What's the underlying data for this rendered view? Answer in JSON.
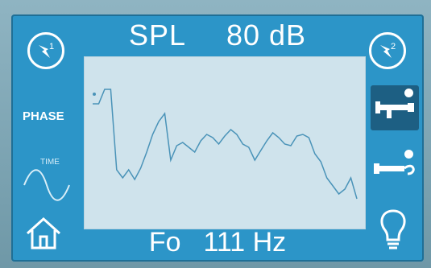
{
  "header": {
    "label": "SPL",
    "value": "80 dB"
  },
  "footer": {
    "label": "Fo",
    "value": "111 Hz"
  },
  "left_panel": {
    "phase_label": "PHASE",
    "time_label": "TIME"
  },
  "icons": {
    "channel1": "channel-1-icon",
    "channel2": "channel-2-icon",
    "home": "home-icon",
    "bulb": "light-bulb-icon",
    "probe1": "probe-1-icon",
    "probe2": "probe-2-icon"
  },
  "colors": {
    "screen": "#2c95c8",
    "plot_bg": "#cfe3ec",
    "waveform": "#4a93b8"
  },
  "waveform": [
    58,
    58,
    40,
    40,
    140,
    150,
    140,
    152,
    138,
    118,
    96,
    80,
    70,
    128,
    110,
    106,
    112,
    118,
    104,
    96,
    100,
    108,
    98,
    90,
    96,
    108,
    112,
    128,
    116,
    104,
    94,
    100,
    108,
    110,
    98,
    96,
    100,
    120,
    130,
    150,
    160,
    170,
    164,
    150,
    176
  ]
}
